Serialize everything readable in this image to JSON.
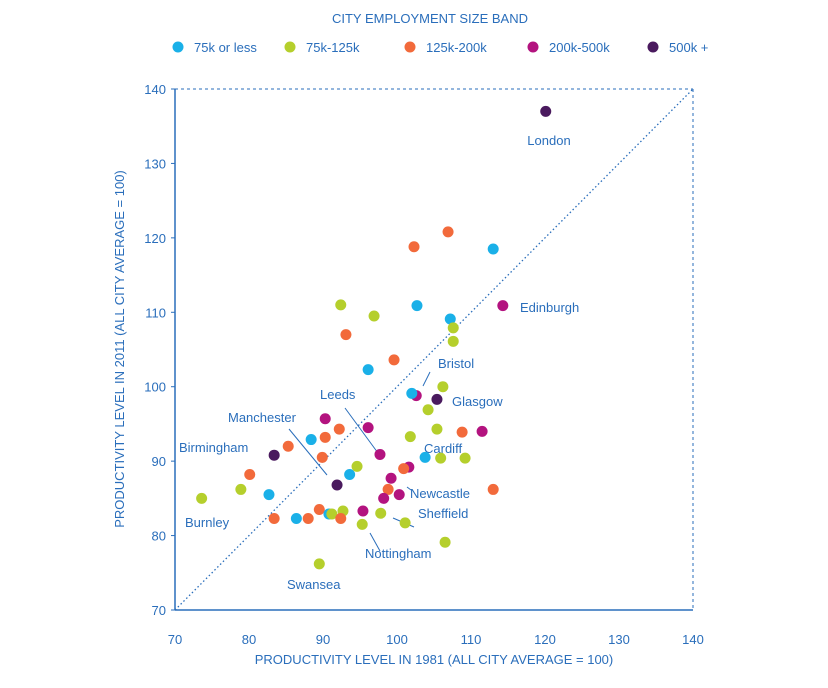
{
  "chart_data": {
    "type": "scatter",
    "title": "",
    "legend": {
      "title": "CITY EMPLOYMENT SIZE BAND",
      "placement": "top",
      "entries": [
        {
          "name": "75k or less",
          "color": "#1ab0e8"
        },
        {
          "name": "75k-125k",
          "color": "#b5cf2c"
        },
        {
          "name": "125k-200k",
          "color": "#f26a3b"
        },
        {
          "name": "200k-500k",
          "color": "#b3137f"
        },
        {
          "name": "500k +",
          "color": "#4a1a5e"
        }
      ]
    },
    "xlabel": "PRODUCTIVITY LEVEL IN 1981 (ALL CITY AVERAGE = 100)",
    "ylabel": "PRODUCTIVITY LEVEL IN 2011 (ALL CITY AVERAGE = 100)",
    "xlim": [
      70,
      140
    ],
    "ylim": [
      70,
      140
    ],
    "xticks": [
      "70",
      "80",
      "90",
      "100",
      "110",
      "120",
      "130",
      "140"
    ],
    "yticks": [
      "70",
      "80",
      "90",
      "100",
      "110",
      "120",
      "130",
      "140"
    ],
    "grid": false,
    "reference_line": "y = x",
    "points": [
      {
        "x": 120.1,
        "y": 137.0,
        "band": 4,
        "label": "London"
      },
      {
        "x": 114.3,
        "y": 110.9,
        "band": 3,
        "label": "Edinburgh"
      },
      {
        "x": 102.6,
        "y": 98.8,
        "band": 3,
        "label": "Bristol"
      },
      {
        "x": 105.4,
        "y": 98.3,
        "band": 4,
        "label": "Glasgow"
      },
      {
        "x": 97.7,
        "y": 90.9,
        "band": 3,
        "label": "Leeds"
      },
      {
        "x": 91.9,
        "y": 86.8,
        "band": 4,
        "label": "Manchester"
      },
      {
        "x": 83.4,
        "y": 90.8,
        "band": 4,
        "label": "Birmingham"
      },
      {
        "x": 101.6,
        "y": 89.2,
        "band": 3,
        "label": "Cardiff"
      },
      {
        "x": 100.3,
        "y": 85.5,
        "band": 3,
        "label": "Newcastle"
      },
      {
        "x": 101.1,
        "y": 81.7,
        "band": 1,
        "label": "Sheffield"
      },
      {
        "x": 95.3,
        "y": 81.5,
        "band": 1,
        "label": "Nottingham"
      },
      {
        "x": 73.6,
        "y": 85.0,
        "band": 1,
        "label": "Burnley"
      },
      {
        "x": 89.5,
        "y": 76.2,
        "band": 1,
        "label": "Swansea"
      },
      {
        "x": 78.9,
        "y": 86.2,
        "band": 1
      },
      {
        "x": 80.1,
        "y": 88.2,
        "band": 2
      },
      {
        "x": 82.7,
        "y": 85.5,
        "band": 0
      },
      {
        "x": 83.4,
        "y": 82.3,
        "band": 2
      },
      {
        "x": 85.3,
        "y": 92.0,
        "band": 2
      },
      {
        "x": 88.4,
        "y": 92.9,
        "band": 0
      },
      {
        "x": 90.3,
        "y": 93.2,
        "band": 2
      },
      {
        "x": 92.2,
        "y": 94.3,
        "band": 2
      },
      {
        "x": 90.3,
        "y": 95.7,
        "band": 3
      },
      {
        "x": 89.9,
        "y": 90.5,
        "band": 2
      },
      {
        "x": 93.6,
        "y": 88.2,
        "band": 0
      },
      {
        "x": 94.6,
        "y": 89.3,
        "band": 1
      },
      {
        "x": 86.4,
        "y": 82.3,
        "band": 0
      },
      {
        "x": 88.0,
        "y": 82.3,
        "band": 2
      },
      {
        "x": 89.5,
        "y": 83.5,
        "band": 2
      },
      {
        "x": 90.8,
        "y": 82.9,
        "band": 0
      },
      {
        "x": 91.2,
        "y": 82.9,
        "band": 1
      },
      {
        "x": 92.7,
        "y": 83.3,
        "band": 1
      },
      {
        "x": 92.4,
        "y": 82.3,
        "band": 2
      },
      {
        "x": 95.4,
        "y": 83.3,
        "band": 3
      },
      {
        "x": 97.8,
        "y": 83.0,
        "band": 1
      },
      {
        "x": 106.5,
        "y": 79.1,
        "band": 1
      },
      {
        "x": 96.1,
        "y": 94.5,
        "band": 3
      },
      {
        "x": 100.9,
        "y": 89.0,
        "band": 2
      },
      {
        "x": 99.2,
        "y": 87.7,
        "band": 3
      },
      {
        "x": 98.8,
        "y": 86.2,
        "band": 2
      },
      {
        "x": 98.2,
        "y": 85.0,
        "band": 3
      },
      {
        "x": 103.8,
        "y": 90.5,
        "band": 0
      },
      {
        "x": 105.9,
        "y": 90.4,
        "band": 1
      },
      {
        "x": 109.2,
        "y": 90.4,
        "band": 1
      },
      {
        "x": 113.0,
        "y": 86.2,
        "band": 2
      },
      {
        "x": 101.8,
        "y": 93.3,
        "band": 1
      },
      {
        "x": 105.4,
        "y": 94.3,
        "band": 1
      },
      {
        "x": 108.8,
        "y": 93.9,
        "band": 2
      },
      {
        "x": 111.5,
        "y": 94.0,
        "band": 3
      },
      {
        "x": 102.0,
        "y": 99.1,
        "band": 0
      },
      {
        "x": 104.2,
        "y": 96.9,
        "band": 1
      },
      {
        "x": 106.2,
        "y": 100.0,
        "band": 1
      },
      {
        "x": 96.1,
        "y": 102.3,
        "band": 0
      },
      {
        "x": 99.6,
        "y": 103.6,
        "band": 2
      },
      {
        "x": 106.9,
        "y": 120.8,
        "band": 2
      },
      {
        "x": 102.3,
        "y": 118.8,
        "band": 2
      },
      {
        "x": 113.0,
        "y": 118.5,
        "band": 0
      },
      {
        "x": 92.4,
        "y": 111.0,
        "band": 1
      },
      {
        "x": 96.9,
        "y": 109.5,
        "band": 1
      },
      {
        "x": 102.7,
        "y": 110.9,
        "band": 0
      },
      {
        "x": 107.2,
        "y": 109.1,
        "band": 0
      },
      {
        "x": 107.6,
        "y": 107.9,
        "band": 1
      },
      {
        "x": 107.6,
        "y": 106.1,
        "band": 1
      },
      {
        "x": 93.1,
        "y": 107.0,
        "band": 2
      }
    ]
  }
}
